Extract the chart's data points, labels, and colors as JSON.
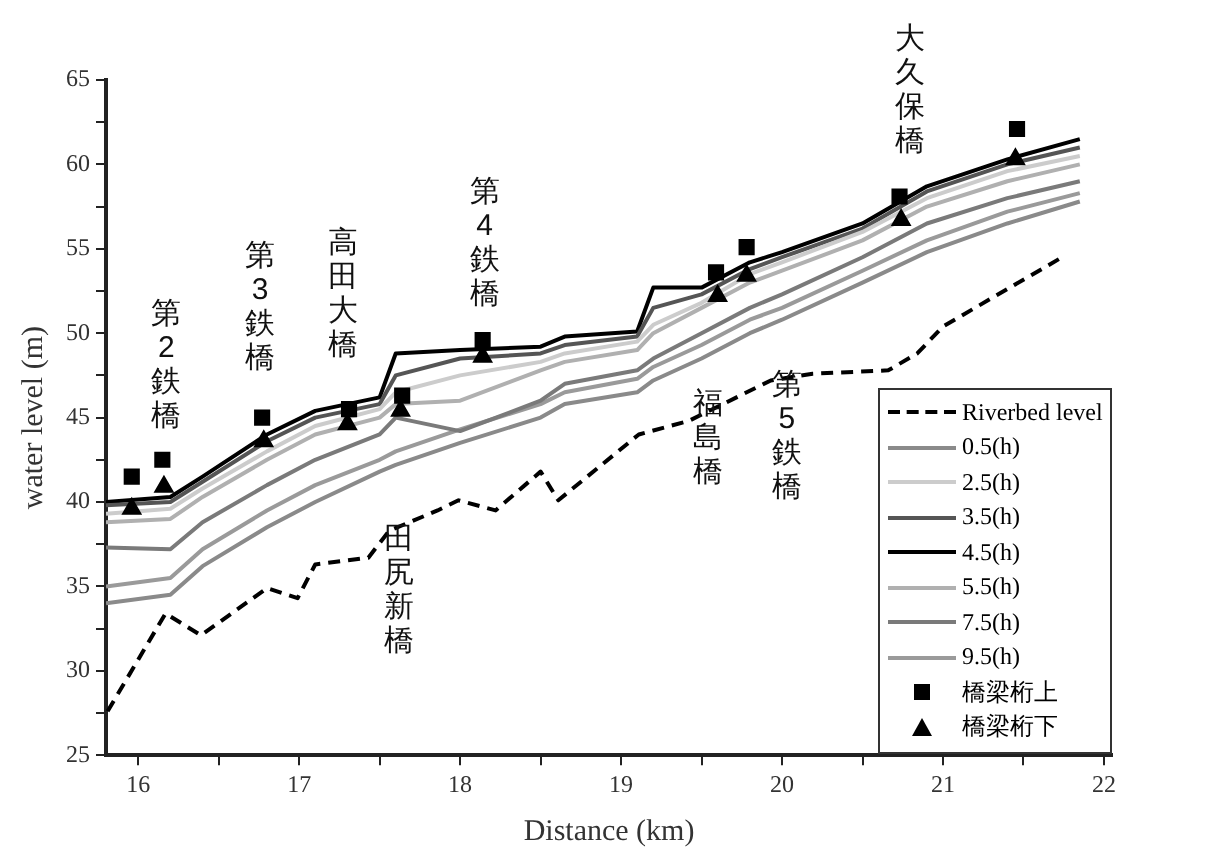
{
  "chart_data": {
    "type": "line",
    "xlabel": "Distance (km)",
    "ylabel": "water level (m)",
    "xlim": [
      15.8,
      22.05
    ],
    "ylim": [
      25,
      65
    ],
    "xticks": [
      16,
      {
        "value": 16.5,
        "label": null
      },
      17,
      {
        "value": 17.5,
        "label": null
      },
      18,
      {
        "value": 18.5,
        "label": null
      },
      19,
      {
        "value": 19.5,
        "label": null
      },
      20,
      {
        "value": 20.5,
        "label": null
      },
      21,
      {
        "value": 21.5,
        "label": null
      },
      22
    ],
    "yticks": [
      25,
      {
        "value": 27.5,
        "label": null
      },
      30,
      {
        "value": 32.5,
        "label": null
      },
      35,
      {
        "value": 37.5,
        "label": null
      },
      40,
      {
        "value": 42.5,
        "label": null
      },
      45,
      {
        "value": 47.5,
        "label": null
      },
      50,
      {
        "value": 52.5,
        "label": null
      },
      55,
      {
        "value": 57.5,
        "label": null
      },
      60,
      {
        "value": 62.5,
        "label": null
      },
      65
    ],
    "legend": "bottom right",
    "x": [
      15.8,
      16.2,
      16.4,
      16.8,
      17.1,
      17.5,
      17.6,
      18.0,
      18.5,
      18.65,
      19.1,
      19.2,
      19.5,
      19.8,
      20.0,
      20.5,
      20.9,
      21.4,
      21.85
    ],
    "series": [
      {
        "name": "Riverbed level",
        "color": "#000000",
        "line_style": "dashed",
        "marker": "none",
        "x": [
          15.81,
          16.17,
          16.39,
          16.8,
          16.99,
          17.1,
          17.43,
          17.56,
          17.86,
          17.99,
          18.22,
          18.5,
          18.61,
          19.11,
          19.42,
          19.93,
          20.19,
          20.66,
          20.84,
          21.0,
          21.74
        ],
        "values": [
          27.6,
          33.4,
          32.1,
          34.9,
          34.3,
          36.3,
          36.7,
          38.3,
          39.5,
          40.1,
          39.5,
          41.8,
          40.1,
          44.0,
          44.8,
          47.2,
          47.6,
          47.8,
          48.8,
          50.4,
          54.5
        ]
      },
      {
        "name": "0.5(h)",
        "color": "#8a8a8a",
        "line_style": "solid",
        "marker": "none",
        "values": [
          34.0,
          34.5,
          36.2,
          38.5,
          40.0,
          41.8,
          42.2,
          43.5,
          45.0,
          45.8,
          46.5,
          47.2,
          48.5,
          50.0,
          50.8,
          53.0,
          54.8,
          56.5,
          57.8
        ]
      },
      {
        "name": "2.5(h)",
        "color": "#cccccc",
        "line_style": "solid",
        "marker": "none",
        "values": [
          39.3,
          39.6,
          40.8,
          43.0,
          44.5,
          45.5,
          46.5,
          47.5,
          48.3,
          48.8,
          49.5,
          50.5,
          51.8,
          53.5,
          54.2,
          56.0,
          58.0,
          59.6,
          60.5
        ]
      },
      {
        "name": "3.5(h)",
        "color": "#555555",
        "line_style": "solid",
        "marker": "none",
        "values": [
          39.8,
          40.0,
          41.2,
          43.6,
          45.0,
          45.8,
          47.5,
          48.5,
          48.8,
          49.3,
          49.8,
          51.5,
          52.3,
          53.8,
          54.5,
          56.2,
          58.4,
          60.0,
          61.0
        ]
      },
      {
        "name": "4.5(h)",
        "color": "#000000",
        "line_style": "solid",
        "marker": "none",
        "values": [
          40.0,
          40.3,
          41.5,
          44.0,
          45.4,
          46.2,
          48.8,
          49.0,
          49.2,
          49.8,
          50.1,
          52.7,
          52.7,
          54.2,
          54.8,
          56.5,
          58.7,
          60.3,
          61.5
        ]
      },
      {
        "name": "5.5(h)",
        "color": "#b0b0b0",
        "line_style": "solid",
        "marker": "none",
        "values": [
          38.8,
          39.0,
          40.3,
          42.5,
          44.0,
          45.0,
          45.8,
          46.0,
          47.8,
          48.3,
          49.0,
          50.0,
          51.5,
          53.0,
          53.7,
          55.5,
          57.5,
          59.0,
          60.0
        ]
      },
      {
        "name": "7.5(h)",
        "color": "#7a7a7a",
        "line_style": "solid",
        "marker": "none",
        "values": [
          37.3,
          37.2,
          38.8,
          41.0,
          42.5,
          44.0,
          45.0,
          44.2,
          46.0,
          47.0,
          47.8,
          48.5,
          50.0,
          51.5,
          52.3,
          54.5,
          56.5,
          58.0,
          59.0
        ]
      },
      {
        "name": "9.5(h)",
        "color": "#9a9a9a",
        "line_style": "solid",
        "marker": "none",
        "values": [
          35.0,
          35.5,
          37.2,
          39.5,
          41.0,
          42.5,
          43.0,
          44.3,
          45.8,
          46.5,
          47.3,
          48.0,
          49.3,
          50.8,
          51.5,
          53.7,
          55.5,
          57.2,
          58.3
        ]
      },
      {
        "name": "橋梁桁上",
        "type": "scatter",
        "color": "#000000",
        "marker": "square",
        "x": [
          15.96,
          16.15,
          16.77,
          17.31,
          17.64,
          18.14,
          19.59,
          19.78,
          20.73,
          21.46
        ],
        "values": [
          41.5,
          42.5,
          45.0,
          45.5,
          46.3,
          49.6,
          53.6,
          55.1,
          58.1,
          62.1
        ]
      },
      {
        "name": "橋梁桁下",
        "type": "scatter",
        "color": "#000000",
        "marker": "triangle",
        "x": [
          15.96,
          16.16,
          16.78,
          17.3,
          17.63,
          18.14,
          19.6,
          19.78,
          20.74,
          21.45
        ],
        "values": [
          39.6,
          40.9,
          43.6,
          44.6,
          45.4,
          48.6,
          52.2,
          53.4,
          56.7,
          60.3
        ]
      }
    ],
    "annotations": [
      {
        "text": "第2鉄橋",
        "x": 16.15,
        "y": 42.5
      },
      {
        "text": "第3鉄橋",
        "x": 16.77,
        "y": 45.0
      },
      {
        "text": "高田大橋",
        "x": 17.31,
        "y": 45.5
      },
      {
        "text": "第4鉄橋",
        "x": 18.14,
        "y": 49.6
      },
      {
        "text": "田尻新橋",
        "x": 17.56,
        "y": 38.3
      },
      {
        "text": "福島橋",
        "x": 19.54,
        "y": 45.4
      },
      {
        "text": "第5鉄橋",
        "x": 19.93,
        "y": 47.2
      },
      {
        "text": "大久保橋",
        "x": 20.73,
        "y": 58.1
      }
    ]
  }
}
